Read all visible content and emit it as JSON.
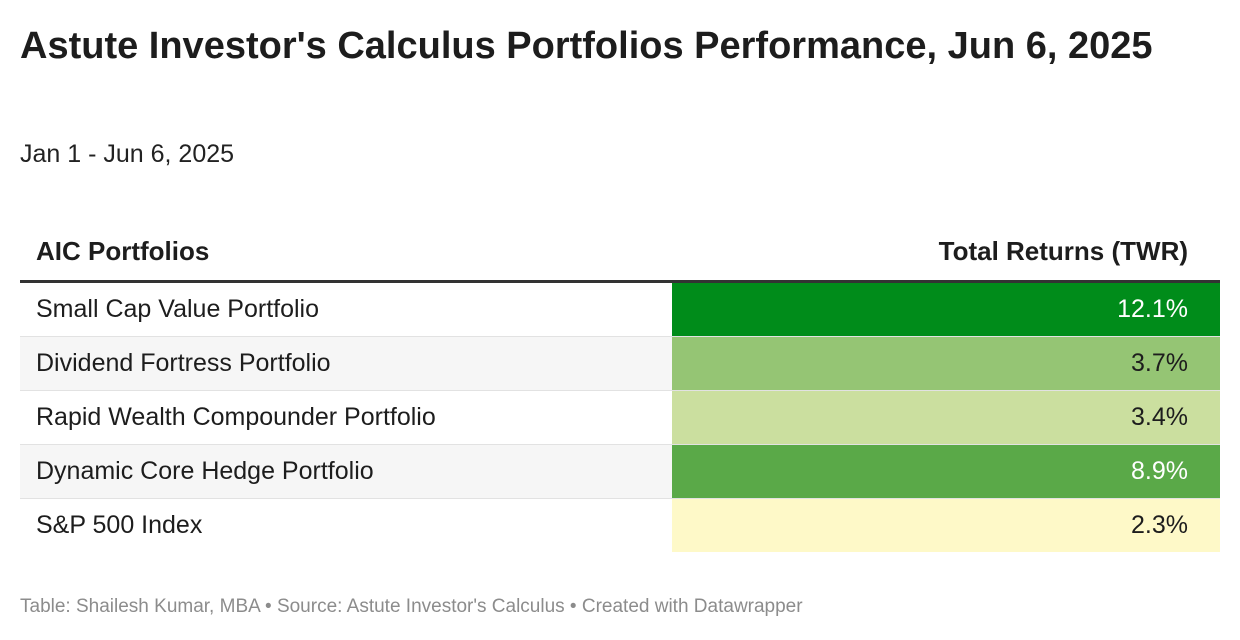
{
  "title": "Astute Investor's Calculus Portfolios Performance, Jun 6, 2025",
  "subtitle": "Jan 1 - Jun 6, 2025",
  "footer": "Table: Shailesh Kumar, MBA • Source: Astute Investor's Calculus • Created with Datawrapper",
  "chart_data": {
    "type": "table",
    "columns": [
      "AIC Portfolios",
      "Total Returns (TWR)"
    ],
    "rows": [
      {
        "name": "Small Cap Value Portfolio",
        "value": 12.1,
        "display": "12.1%",
        "color": "#008c1a",
        "text_color": "#ffffff"
      },
      {
        "name": "Dividend Fortress Portfolio",
        "value": 3.7,
        "display": "3.7%",
        "color": "#95c574",
        "text_color": "#1d1d1d"
      },
      {
        "name": "Rapid Wealth Compounder Portfolio",
        "value": 3.4,
        "display": "3.4%",
        "color": "#cbdf9f",
        "text_color": "#1d1d1d"
      },
      {
        "name": "Dynamic Core Hedge Portfolio",
        "value": 8.9,
        "display": "8.9%",
        "color": "#5aa948",
        "text_color": "#ffffff"
      },
      {
        "name": "S&P 500 Index",
        "value": 2.3,
        "display": "2.3%",
        "color": "#fef9c8",
        "text_color": "#1d1d1d"
      }
    ]
  }
}
